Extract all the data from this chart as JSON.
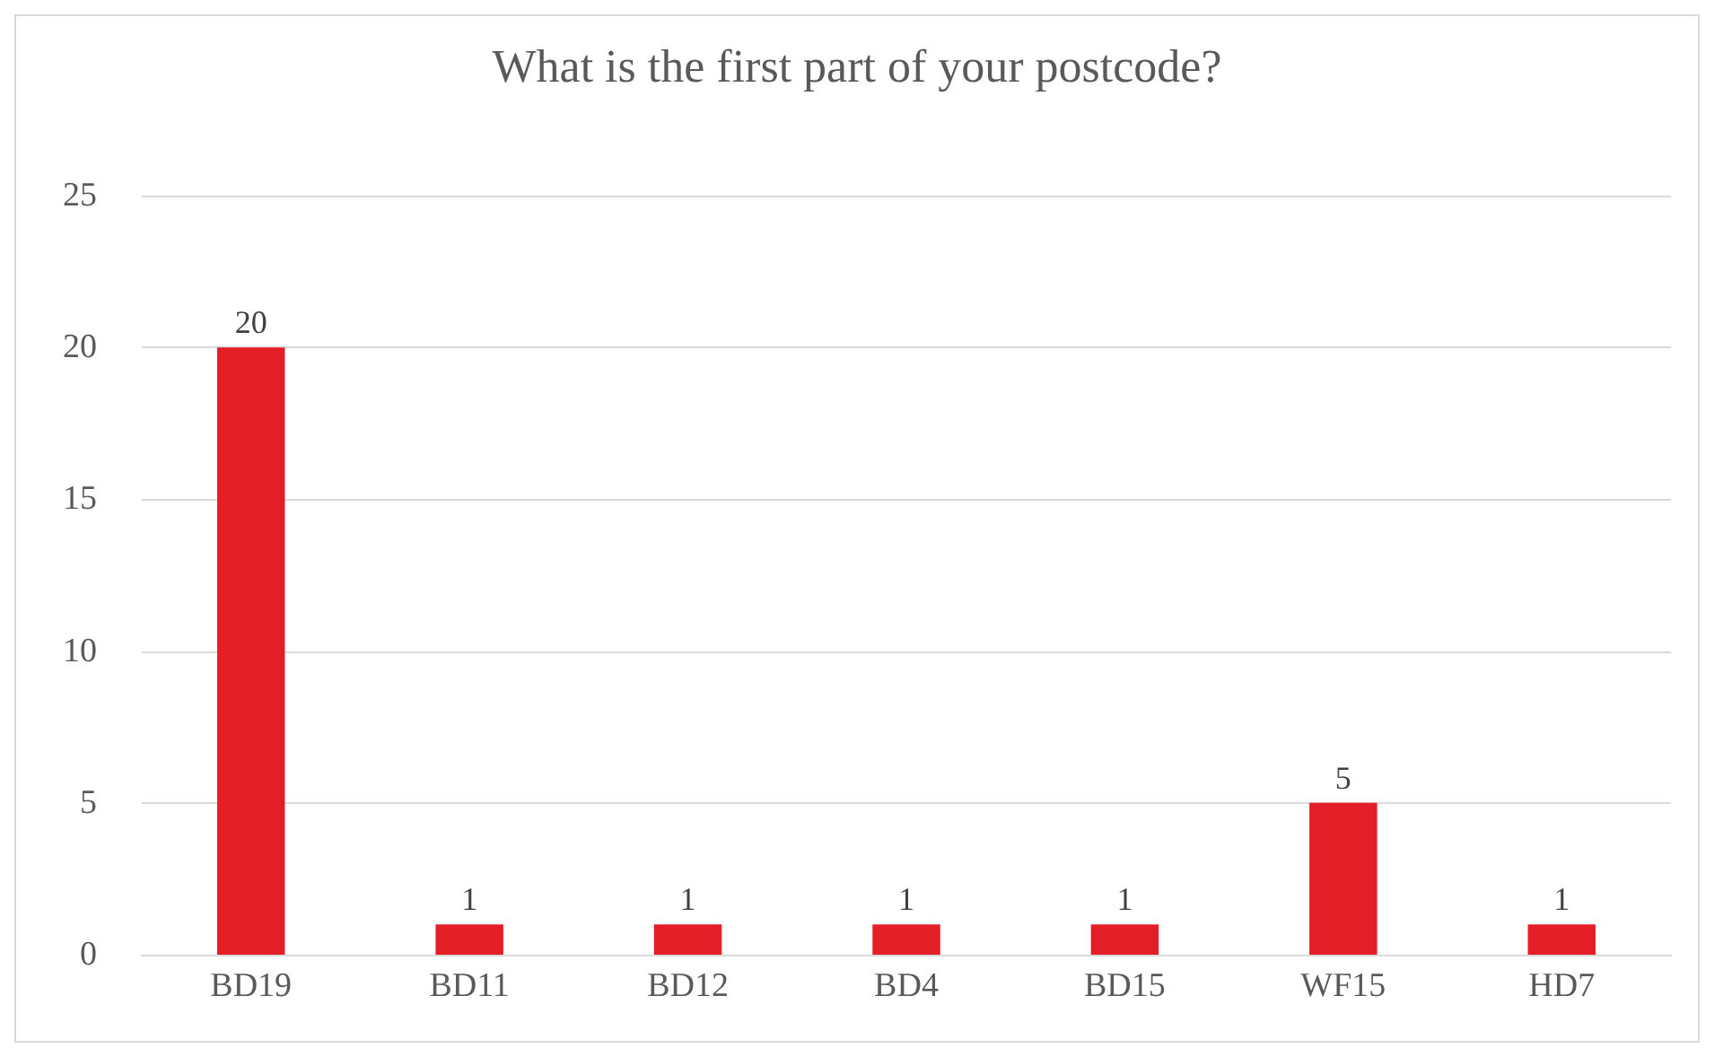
{
  "chart_data": {
    "type": "bar",
    "title": "What is the first part of your postcode?",
    "categories": [
      "BD19",
      "BD11",
      "BD12",
      "BD4",
      "BD15",
      "WF15",
      "HD7"
    ],
    "values": [
      20,
      1,
      1,
      1,
      1,
      5,
      1
    ],
    "color": "#e41e26",
    "ylim": [
      0,
      25
    ],
    "yticks": [
      0,
      5,
      10,
      15,
      20,
      25
    ],
    "grid": "y",
    "data_labels": true
  }
}
